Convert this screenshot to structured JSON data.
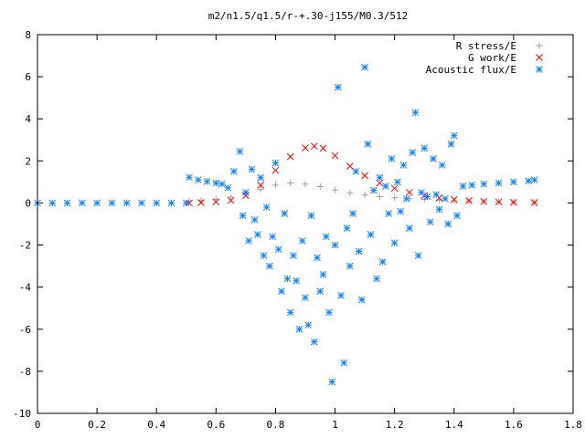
{
  "chart_data": {
    "type": "scatter",
    "title": "m2/n1.5/q1.5/r-+.30-j155/M0.3/512",
    "xlabel": "",
    "ylabel": "",
    "xlim": [
      0,
      1.8
    ],
    "ylim": [
      -10,
      8
    ],
    "x_ticks": [
      "0",
      "0.2",
      "0.4",
      "0.6",
      "0.8",
      "1",
      "1.2",
      "1.4",
      "1.6",
      "1.8"
    ],
    "y_ticks": [
      "-10",
      "-8",
      "-6",
      "-4",
      "-2",
      "0",
      "2",
      "4",
      "6",
      "8"
    ],
    "grid": false,
    "legend": "top-right",
    "series": [
      {
        "name": "R stress/E",
        "marker": "plus",
        "color": "#a0a0a0",
        "points": [
          [
            0.51,
            0.08
          ],
          [
            0.55,
            0.12
          ],
          [
            0.6,
            0.18
          ],
          [
            0.65,
            0.28
          ],
          [
            0.7,
            0.45
          ],
          [
            0.75,
            0.65
          ],
          [
            0.8,
            0.85
          ],
          [
            0.85,
            0.95
          ],
          [
            0.9,
            0.9
          ],
          [
            0.95,
            0.78
          ],
          [
            1.0,
            0.62
          ],
          [
            1.05,
            0.48
          ],
          [
            1.1,
            0.38
          ],
          [
            1.15,
            0.3
          ],
          [
            1.2,
            0.25
          ],
          [
            1.25,
            0.2
          ],
          [
            1.3,
            0.17
          ],
          [
            1.35,
            0.14
          ],
          [
            1.4,
            0.11
          ],
          [
            1.45,
            0.09
          ],
          [
            1.5,
            0.07
          ],
          [
            1.55,
            0.05
          ],
          [
            1.6,
            0.04
          ],
          [
            1.67,
            0.03
          ]
        ]
      },
      {
        "name": "G work/E",
        "marker": "cross",
        "color": "#ff0000",
        "points": [
          [
            0.51,
            0.0
          ],
          [
            0.55,
            0.02
          ],
          [
            0.6,
            0.05
          ],
          [
            0.65,
            0.12
          ],
          [
            0.7,
            0.35
          ],
          [
            0.75,
            0.85
          ],
          [
            0.8,
            1.55
          ],
          [
            0.85,
            2.2
          ],
          [
            0.9,
            2.62
          ],
          [
            0.93,
            2.7
          ],
          [
            0.96,
            2.6
          ],
          [
            1.0,
            2.25
          ],
          [
            1.05,
            1.75
          ],
          [
            1.1,
            1.3
          ],
          [
            1.15,
            0.95
          ],
          [
            1.2,
            0.7
          ],
          [
            1.25,
            0.5
          ],
          [
            1.3,
            0.35
          ],
          [
            1.35,
            0.24
          ],
          [
            1.4,
            0.16
          ],
          [
            1.45,
            0.11
          ],
          [
            1.5,
            0.07
          ],
          [
            1.55,
            0.05
          ],
          [
            1.6,
            0.03
          ],
          [
            1.67,
            0.02
          ]
        ]
      },
      {
        "name": "Acoustic flux/E",
        "marker": "star",
        "color": "#0f80ff",
        "points": [
          [
            0.0,
            0.0
          ],
          [
            0.05,
            0.0
          ],
          [
            0.1,
            0.0
          ],
          [
            0.15,
            0.0
          ],
          [
            0.2,
            0.0
          ],
          [
            0.25,
            0.0
          ],
          [
            0.3,
            0.0
          ],
          [
            0.35,
            0.0
          ],
          [
            0.4,
            0.0
          ],
          [
            0.45,
            0.0
          ],
          [
            0.5,
            0.0
          ],
          [
            0.51,
            1.22
          ],
          [
            0.54,
            1.1
          ],
          [
            0.57,
            1.02
          ],
          [
            0.6,
            0.95
          ],
          [
            0.62,
            0.9
          ],
          [
            0.64,
            0.72
          ],
          [
            0.66,
            1.5
          ],
          [
            0.68,
            2.45
          ],
          [
            0.69,
            -0.6
          ],
          [
            0.7,
            0.5
          ],
          [
            0.71,
            -1.8
          ],
          [
            0.72,
            1.6
          ],
          [
            0.73,
            -0.8
          ],
          [
            0.74,
            -1.5
          ],
          [
            0.75,
            1.2
          ],
          [
            0.76,
            -2.5
          ],
          [
            0.77,
            -0.2
          ],
          [
            0.78,
            -3.0
          ],
          [
            0.79,
            -1.6
          ],
          [
            0.8,
            1.9
          ],
          [
            0.81,
            -2.2
          ],
          [
            0.82,
            -4.2
          ],
          [
            0.83,
            -0.5
          ],
          [
            0.84,
            -3.6
          ],
          [
            0.85,
            -5.2
          ],
          [
            0.86,
            -2.5
          ],
          [
            0.87,
            -3.7
          ],
          [
            0.88,
            -6.0
          ],
          [
            0.89,
            -1.8
          ],
          [
            0.9,
            -4.5
          ],
          [
            0.91,
            -5.8
          ],
          [
            0.92,
            -0.6
          ],
          [
            0.93,
            -6.6
          ],
          [
            0.94,
            -2.6
          ],
          [
            0.95,
            -4.2
          ],
          [
            0.96,
            -3.4
          ],
          [
            0.97,
            -1.6
          ],
          [
            0.98,
            -5.2
          ],
          [
            0.99,
            -8.5
          ],
          [
            1.0,
            -2.0
          ],
          [
            1.01,
            5.5
          ],
          [
            1.02,
            -4.4
          ],
          [
            1.03,
            -7.6
          ],
          [
            1.04,
            -1.2
          ],
          [
            1.05,
            -3.0
          ],
          [
            1.06,
            -0.5
          ],
          [
            1.07,
            1.5
          ],
          [
            1.08,
            -2.3
          ],
          [
            1.09,
            -4.6
          ],
          [
            1.1,
            6.45
          ],
          [
            1.11,
            2.8
          ],
          [
            1.12,
            -1.5
          ],
          [
            1.13,
            0.6
          ],
          [
            1.14,
            -3.6
          ],
          [
            1.15,
            1.2
          ],
          [
            1.16,
            -2.8
          ],
          [
            1.17,
            0.8
          ],
          [
            1.18,
            -0.5
          ],
          [
            1.19,
            2.1
          ],
          [
            1.2,
            -1.9
          ],
          [
            1.21,
            1.0
          ],
          [
            1.22,
            -0.4
          ],
          [
            1.23,
            1.8
          ],
          [
            1.24,
            0.2
          ],
          [
            1.25,
            -1.2
          ],
          [
            1.26,
            2.4
          ],
          [
            1.27,
            4.3
          ],
          [
            1.28,
            -2.5
          ],
          [
            1.29,
            0.5
          ],
          [
            1.3,
            2.6
          ],
          [
            1.31,
            0.3
          ],
          [
            1.32,
            -0.9
          ],
          [
            1.33,
            2.1
          ],
          [
            1.34,
            0.4
          ],
          [
            1.35,
            -0.3
          ],
          [
            1.36,
            1.8
          ],
          [
            1.37,
            0.2
          ],
          [
            1.38,
            -1.0
          ],
          [
            1.39,
            2.8
          ],
          [
            1.4,
            3.2
          ],
          [
            1.41,
            -0.6
          ],
          [
            1.43,
            0.8
          ],
          [
            1.46,
            0.85
          ],
          [
            1.5,
            0.9
          ],
          [
            1.55,
            0.95
          ],
          [
            1.6,
            1.0
          ],
          [
            1.65,
            1.05
          ],
          [
            1.67,
            1.1
          ]
        ]
      }
    ]
  }
}
